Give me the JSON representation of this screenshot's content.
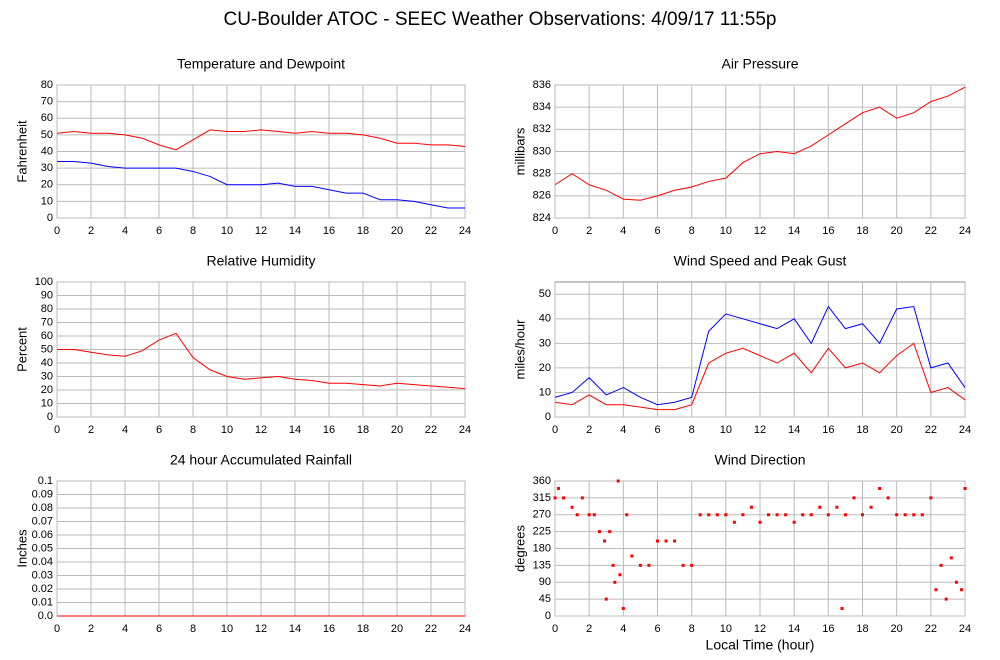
{
  "title": "CU-Boulder ATOC - SEEC Weather Observations: 4/09/17 11:55p",
  "chart_data": [
    {
      "type": "line",
      "title": "Temperature and Dewpoint",
      "y_label": "Fahrenheit",
      "x": [
        0,
        1,
        2,
        3,
        4,
        5,
        6,
        7,
        8,
        9,
        10,
        11,
        12,
        13,
        14,
        15,
        16,
        17,
        18,
        19,
        20,
        21,
        22,
        23,
        24
      ],
      "series": [
        {
          "color": "#ff0000",
          "values": [
            51,
            52,
            51,
            51,
            50,
            48,
            44,
            41,
            47,
            53,
            52,
            52,
            53,
            52,
            51,
            52,
            51,
            51,
            50,
            48,
            45,
            45,
            44,
            44,
            43
          ]
        },
        {
          "color": "#0000ff",
          "values": [
            34,
            34,
            33,
            31,
            30,
            30,
            30,
            30,
            28,
            25,
            20,
            20,
            20,
            21,
            19,
            19,
            17,
            15,
            15,
            11,
            11,
            10,
            8,
            6,
            6
          ]
        }
      ],
      "xlim": [
        0,
        24
      ],
      "xticks": [
        0,
        2,
        4,
        6,
        8,
        10,
        12,
        14,
        16,
        18,
        20,
        22,
        24
      ],
      "ylim": [
        0,
        80
      ],
      "yticks": [
        0,
        10,
        20,
        30,
        40,
        50,
        60,
        70,
        80
      ],
      "grid": true
    },
    {
      "type": "line",
      "title": "Air Pressure",
      "y_label": "millibars",
      "x": [
        0,
        1,
        2,
        3,
        4,
        5,
        6,
        7,
        8,
        9,
        10,
        11,
        12,
        13,
        14,
        15,
        16,
        17,
        18,
        19,
        20,
        21,
        22,
        23,
        24
      ],
      "series": [
        {
          "color": "#ff0000",
          "values": [
            827,
            828,
            827,
            826.5,
            825.7,
            825.6,
            826,
            826.5,
            826.8,
            827.3,
            827.6,
            829,
            829.8,
            830,
            829.8,
            830.5,
            831.5,
            832.5,
            833.5,
            834,
            833,
            833.5,
            834.5,
            835,
            835.8
          ]
        }
      ],
      "xlim": [
        0,
        24
      ],
      "xticks": [
        0,
        2,
        4,
        6,
        8,
        10,
        12,
        14,
        16,
        18,
        20,
        22,
        24
      ],
      "ylim": [
        824,
        836
      ],
      "yticks": [
        824,
        826,
        828,
        830,
        832,
        834,
        836
      ],
      "grid": true
    },
    {
      "type": "line",
      "title": "Relative Humidity",
      "y_label": "Percent",
      "x": [
        0,
        1,
        2,
        3,
        4,
        5,
        6,
        7,
        8,
        9,
        10,
        11,
        12,
        13,
        14,
        15,
        16,
        17,
        18,
        19,
        20,
        21,
        22,
        23,
        24
      ],
      "series": [
        {
          "color": "#ff0000",
          "values": [
            50,
            50,
            48,
            46,
            45,
            49,
            57,
            62,
            44,
            35,
            30,
            28,
            29,
            30,
            28,
            27,
            25,
            25,
            24,
            23,
            25,
            24,
            23,
            22,
            21
          ]
        }
      ],
      "xlim": [
        0,
        24
      ],
      "xticks": [
        0,
        2,
        4,
        6,
        8,
        10,
        12,
        14,
        16,
        18,
        20,
        22,
        24
      ],
      "ylim": [
        0,
        100
      ],
      "yticks": [
        0,
        10,
        20,
        30,
        40,
        50,
        60,
        70,
        80,
        90,
        100
      ],
      "grid": true
    },
    {
      "type": "line",
      "title": "Wind Speed and Peak Gust",
      "y_label": "miles/hour",
      "x": [
        0,
        1,
        2,
        3,
        4,
        5,
        6,
        7,
        8,
        9,
        10,
        11,
        12,
        13,
        14,
        15,
        16,
        17,
        18,
        19,
        20,
        21,
        22,
        23,
        24
      ],
      "series": [
        {
          "color": "#0000ff",
          "values": [
            8,
            10,
            16,
            9,
            12,
            8,
            5,
            6,
            8,
            35,
            42,
            40,
            38,
            36,
            40,
            30,
            45,
            36,
            38,
            30,
            44,
            45,
            20,
            22,
            12
          ]
        },
        {
          "color": "#ff0000",
          "values": [
            6,
            5,
            9,
            5,
            5,
            4,
            3,
            3,
            5,
            22,
            26,
            28,
            25,
            22,
            26,
            18,
            28,
            20,
            22,
            18,
            25,
            30,
            10,
            12,
            7
          ]
        }
      ],
      "xlim": [
        0,
        24
      ],
      "xticks": [
        0,
        2,
        4,
        6,
        8,
        10,
        12,
        14,
        16,
        18,
        20,
        22,
        24
      ],
      "ylim": [
        0,
        55
      ],
      "yticks": [
        0,
        10,
        20,
        30,
        40,
        50
      ],
      "grid": true
    },
    {
      "type": "line",
      "title": "24 hour Accumulated Rainfall",
      "y_label": "Inches",
      "x": [
        0,
        1,
        2,
        3,
        4,
        5,
        6,
        7,
        8,
        9,
        10,
        11,
        12,
        13,
        14,
        15,
        16,
        17,
        18,
        19,
        20,
        21,
        22,
        23,
        24
      ],
      "series": [
        {
          "color": "#ff0000",
          "values": [
            0,
            0,
            0,
            0,
            0,
            0,
            0,
            0,
            0,
            0,
            0,
            0,
            0,
            0,
            0,
            0,
            0,
            0,
            0,
            0,
            0,
            0,
            0,
            0,
            0
          ]
        }
      ],
      "xlim": [
        0,
        24
      ],
      "xticks": [
        0,
        2,
        4,
        6,
        8,
        10,
        12,
        14,
        16,
        18,
        20,
        22,
        24
      ],
      "ylim": [
        0,
        0.1
      ],
      "yticks": [
        {
          "value": 0,
          "label": "0.0"
        },
        0.01,
        0.02,
        0.03,
        0.04,
        0.05,
        0.06,
        0.07,
        0.08,
        0.09,
        0.1
      ],
      "grid": true
    },
    {
      "type": "scatter",
      "title": "Wind Direction",
      "y_label": "degrees",
      "x_label": "Local Time (hour)",
      "x": [
        0,
        0.2,
        0.5,
        1,
        1.3,
        1.6,
        2,
        2.3,
        2.6,
        2.9,
        3.0,
        3.2,
        3.4,
        3.5,
        3.7,
        3.8,
        4,
        4.2,
        4.5,
        5,
        5.5,
        6,
        6.5,
        7,
        7.5,
        8,
        8.5,
        9,
        9.5,
        10,
        10.5,
        11,
        11.5,
        12,
        12.5,
        13,
        13.5,
        14,
        14.5,
        15,
        15.5,
        16,
        16.5,
        16.8,
        17,
        17.5,
        18,
        18.5,
        19,
        19.5,
        20,
        20.5,
        21,
        21.5,
        22,
        22.3,
        22.6,
        22.9,
        23.2,
        23.5,
        23.8,
        24
      ],
      "series": [
        {
          "color": "#ff0000",
          "values": [
            315,
            340,
            315,
            290,
            270,
            315,
            270,
            270,
            225,
            200,
            45,
            225,
            135,
            90,
            360,
            110,
            20,
            270,
            160,
            135,
            135,
            200,
            200,
            200,
            135,
            135,
            270,
            270,
            270,
            270,
            250,
            270,
            290,
            250,
            270,
            270,
            270,
            250,
            270,
            270,
            290,
            270,
            290,
            20,
            270,
            315,
            270,
            290,
            340,
            315,
            270,
            270,
            270,
            270,
            315,
            70,
            135,
            45,
            155,
            90,
            70,
            340
          ]
        }
      ],
      "xlim": [
        0,
        24
      ],
      "xticks": [
        0,
        2,
        4,
        6,
        8,
        10,
        12,
        14,
        16,
        18,
        20,
        22,
        24
      ],
      "ylim": [
        0,
        360
      ],
      "yticks": [
        0,
        45,
        90,
        135,
        180,
        225,
        270,
        315,
        360
      ],
      "grid": true
    }
  ]
}
